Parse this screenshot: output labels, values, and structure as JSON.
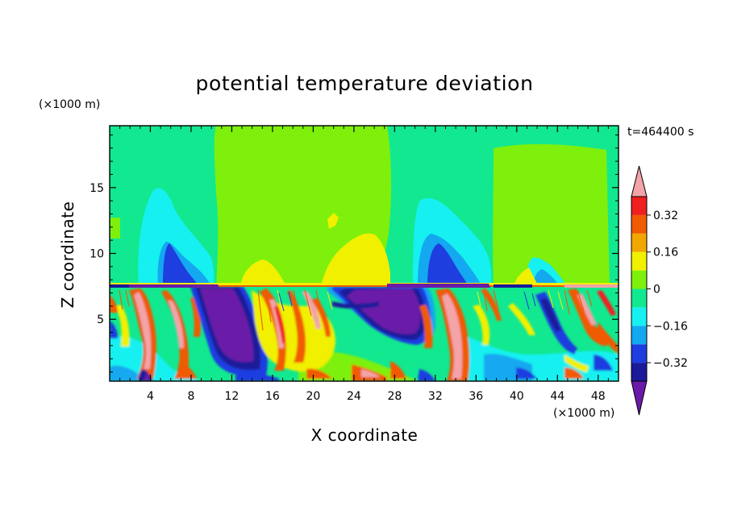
{
  "chart_data": {
    "type": "heatmap",
    "title": "potential temperature deviation",
    "xlabel": "X coordinate",
    "ylabel": "Z coordinate",
    "x_unit": "(×1000 m)",
    "y_unit": "(×1000 m)",
    "time_label": "t=464400 s",
    "xlim": [
      0,
      50
    ],
    "ylim": [
      0.3,
      19.7
    ],
    "x_ticks": [
      4,
      8,
      12,
      16,
      20,
      24,
      28,
      32,
      36,
      40,
      44,
      48
    ],
    "y_ticks": [
      5,
      10,
      15
    ],
    "x_tick_labels": [
      "4",
      "8",
      "12",
      "16",
      "20",
      "24",
      "28",
      "32",
      "36",
      "40",
      "44",
      "48"
    ],
    "y_tick_labels": [
      "5",
      "10",
      "15"
    ],
    "colorbar": {
      "levels": [
        -0.4,
        -0.32,
        -0.24,
        -0.16,
        -0.08,
        0,
        0.08,
        0.16,
        0.24,
        0.32,
        0.4
      ],
      "colors": [
        "#6a1aa8",
        "#1a1a9a",
        "#1e3ee0",
        "#14a8f0",
        "#16f0f0",
        "#12e890",
        "#7ef00c",
        "#f0f000",
        "#f0a800",
        "#f05a00",
        "#f02020",
        "#f2a4a8"
      ],
      "labels": [
        {
          "value": 0.32,
          "text": "0.32"
        },
        {
          "value": 0.16,
          "text": "0.16"
        },
        {
          "value": 0,
          "text": "0"
        },
        {
          "value": -0.16,
          "text": "−0.16"
        },
        {
          "value": -0.32,
          "text": "−0.32"
        }
      ]
    },
    "features": [
      {
        "region": "upper background",
        "z_range": [
          7.5,
          19.7
        ],
        "value": 0.04
      },
      {
        "region": "cold anomalies",
        "x_centers": [
          11,
          27
        ],
        "z_range": [
          0.5,
          7.5
        ],
        "value": -0.4
      },
      {
        "region": "warm plumes",
        "x_centers": [
          5,
          16,
          34
        ],
        "z_range": [
          0.3,
          7.5
        ],
        "value": 0.4
      }
    ]
  }
}
